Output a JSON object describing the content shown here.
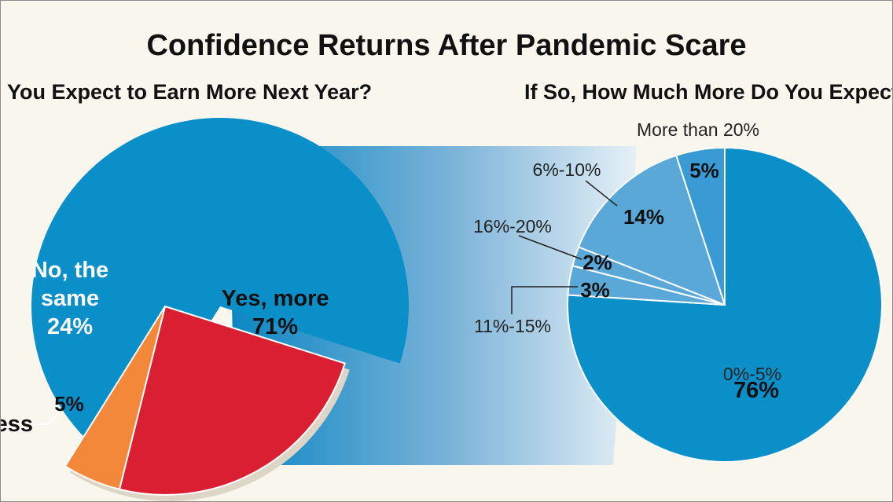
{
  "chart_data": [
    {
      "type": "pie",
      "title": "Confidence Returns After Pandemic Scare",
      "subtitle": "You Expect to Earn More Next Year?",
      "categories": [
        "Yes, more",
        "No, the same",
        "Less"
      ],
      "values": [
        71,
        24,
        5
      ],
      "labels": {
        "yes_name": "Yes, more",
        "yes_pct": "71%",
        "same_line1": "No, the",
        "same_line2": "same",
        "same_pct": "24%",
        "less_name": "Less",
        "less_pct": "5%"
      },
      "colors": [
        "#0a8fc8",
        "#d91f31",
        "#f3883a"
      ]
    },
    {
      "type": "pie",
      "subtitle": "If So, How Much More Do You Expect?",
      "categories": [
        "0%-5%",
        "11%-15%",
        "16%-20%",
        "6%-10%",
        "More than 20%"
      ],
      "values": [
        76,
        3,
        2,
        14,
        5
      ],
      "labels": {
        "s0_name": "0%-5%",
        "s0_pct": "76%",
        "s1_name": "11%-15%",
        "s1_pct": "3%",
        "s2_name": "16%-20%",
        "s2_pct": "2%",
        "s3_name": "6%-10%",
        "s3_pct": "14%",
        "s4_name": "More than 20%",
        "s4_pct": "5%"
      },
      "colors": [
        "#0a8fc8",
        "#5aa8d8",
        "#5aa8d8",
        "#5aa8d8",
        "#3a9ad3"
      ]
    }
  ]
}
